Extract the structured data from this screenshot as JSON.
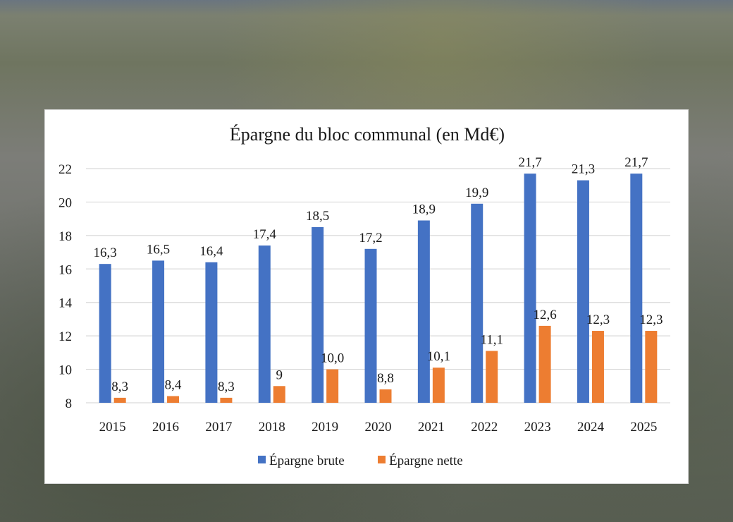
{
  "chart_data": {
    "type": "bar",
    "title": "Épargne du bloc communal (en Md€)",
    "xlabel": "",
    "ylabel": "",
    "categories": [
      "2015",
      "2016",
      "2017",
      "2018",
      "2019",
      "2020",
      "2021",
      "2022",
      "2023",
      "2024",
      "2025"
    ],
    "series": [
      {
        "name": "Épargne brute",
        "color": "#4472c4",
        "values": [
          16.3,
          16.5,
          16.4,
          17.4,
          18.5,
          17.2,
          18.9,
          19.9,
          21.7,
          21.3,
          21.7
        ],
        "labels": [
          "16,3",
          "16,5",
          "16,4",
          "17,4",
          "18,5",
          "17,2",
          "18,9",
          "19,9",
          "21,7",
          "21,3",
          "21,7"
        ]
      },
      {
        "name": "Épargne nette",
        "color": "#ed7d31",
        "values": [
          8.3,
          8.4,
          8.3,
          9,
          10.0,
          8.8,
          10.1,
          11.1,
          12.6,
          12.3,
          12.3
        ],
        "labels": [
          "8,3",
          "8,4",
          "8,3",
          "9",
          "10,0",
          "8,8",
          "10,1",
          "11,1",
          "12,6",
          "12,3",
          "12,3"
        ]
      }
    ],
    "ylim": [
      8,
      22
    ],
    "yticks": [
      8,
      10,
      12,
      14,
      16,
      18,
      20,
      22
    ],
    "grid": true,
    "legend": "bottom"
  }
}
